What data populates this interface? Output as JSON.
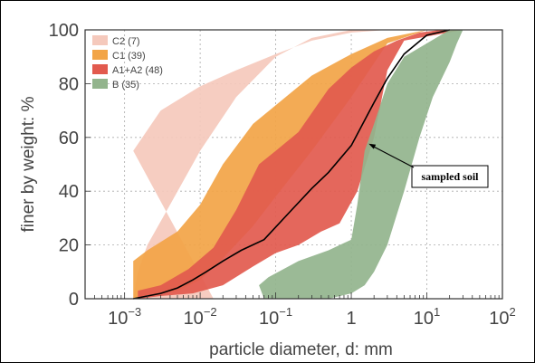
{
  "chart_data": {
    "type": "area",
    "xlabel": "particle diameter, d: mm",
    "ylabel": "finer by weight: %",
    "xscale": "log",
    "xlim": [
      0.0003,
      100
    ],
    "ylim": [
      0,
      100
    ],
    "grid": true,
    "legend_position": "top-left",
    "x_ticks": [
      {
        "base": "10",
        "exp": "−3"
      },
      {
        "base": "10",
        "exp": "−2"
      },
      {
        "base": "10",
        "exp": "−1"
      },
      {
        "base": "1",
        "exp": ""
      },
      {
        "base": "10",
        "exp": "1"
      },
      {
        "base": "10",
        "exp": "2"
      }
    ],
    "y_ticks": [
      "0",
      "20",
      "40",
      "60",
      "80",
      "100"
    ],
    "bands": [
      {
        "name": "C2 (7)",
        "color": "#f5c9bc",
        "left": [
          [
            0.0013,
            55
          ],
          [
            0.0013,
            0
          ],
          [
            0.015,
            0
          ]
        ],
        "right": [
          [
            0.0013,
            55
          ],
          [
            0.003,
            70
          ],
          [
            0.01,
            79
          ],
          [
            0.03,
            85
          ],
          [
            0.1,
            91
          ],
          [
            0.3,
            96
          ],
          [
            1,
            99
          ],
          [
            3,
            100
          ],
          [
            30,
            100
          ],
          [
            30,
            100
          ],
          [
            1,
            100
          ],
          [
            0.3,
            97
          ],
          [
            0.1,
            90
          ],
          [
            0.03,
            75
          ],
          [
            0.01,
            55
          ],
          [
            0.004,
            35
          ],
          [
            0.002,
            20
          ],
          [
            0.0015,
            10
          ],
          [
            0.0013,
            0
          ]
        ]
      },
      {
        "name": "C1 (39)",
        "color": "#f2a446",
        "outline": [
          [
            0.0013,
            14
          ],
          [
            0.002,
            18
          ],
          [
            0.005,
            25
          ],
          [
            0.01,
            35
          ],
          [
            0.02,
            50
          ],
          [
            0.05,
            65
          ],
          [
            0.1,
            72
          ],
          [
            0.3,
            83
          ],
          [
            1,
            91
          ],
          [
            3,
            97
          ],
          [
            10,
            100
          ],
          [
            30,
            100
          ],
          [
            10,
            100
          ],
          [
            3,
            95
          ],
          [
            1,
            75
          ],
          [
            0.3,
            55
          ],
          [
            0.1,
            38
          ],
          [
            0.05,
            27
          ],
          [
            0.02,
            15
          ],
          [
            0.01,
            7
          ],
          [
            0.005,
            3
          ],
          [
            0.002,
            1
          ],
          [
            0.0013,
            0
          ]
        ]
      },
      {
        "name": "A1+A2 (48)",
        "color": "#e25a4e",
        "outline": [
          [
            0.0015,
            3
          ],
          [
            0.003,
            5
          ],
          [
            0.007,
            11
          ],
          [
            0.015,
            19
          ],
          [
            0.03,
            33
          ],
          [
            0.06,
            50
          ],
          [
            0.1,
            55
          ],
          [
            0.2,
            62
          ],
          [
            0.5,
            78
          ],
          [
            1,
            86
          ],
          [
            2,
            92
          ],
          [
            4,
            96
          ],
          [
            8,
            99
          ],
          [
            15,
            100
          ],
          [
            30,
            100
          ],
          [
            5,
            96
          ],
          [
            3,
            85
          ],
          [
            2,
            60
          ],
          [
            1.2,
            40
          ],
          [
            0.7,
            28
          ],
          [
            0.4,
            25
          ],
          [
            0.2,
            20
          ],
          [
            0.1,
            17
          ],
          [
            0.05,
            12
          ],
          [
            0.02,
            5
          ],
          [
            0.008,
            2
          ],
          [
            0.003,
            1
          ],
          [
            0.0015,
            0
          ]
        ]
      },
      {
        "name": "B (35)",
        "color": "#93b48d",
        "outline": [
          [
            0.06,
            5
          ],
          [
            0.08,
            8
          ],
          [
            0.2,
            14
          ],
          [
            0.5,
            18
          ],
          [
            1,
            22
          ],
          [
            1.2,
            35
          ],
          [
            1.5,
            55
          ],
          [
            2,
            65
          ],
          [
            3,
            80
          ],
          [
            5,
            90
          ],
          [
            10,
            95
          ],
          [
            20,
            100
          ],
          [
            30,
            100
          ],
          [
            25,
            95
          ],
          [
            20,
            88
          ],
          [
            12,
            75
          ],
          [
            8,
            60
          ],
          [
            5,
            40
          ],
          [
            3,
            20
          ],
          [
            2,
            10
          ],
          [
            1.5,
            5
          ],
          [
            1,
            2
          ],
          [
            0.5,
            0
          ],
          [
            0.2,
            0
          ],
          [
            0.07,
            0
          ]
        ]
      }
    ],
    "series": [
      {
        "name": "sampled soil",
        "color": "#000000",
        "x": [
          0.0013,
          0.002,
          0.003,
          0.005,
          0.008,
          0.012,
          0.02,
          0.035,
          0.07,
          0.15,
          0.3,
          0.5,
          1,
          2,
          3,
          5,
          10,
          20
        ],
        "y": [
          0,
          1,
          2,
          4,
          7,
          10,
          14,
          18,
          22,
          32,
          41,
          47,
          57,
          73,
          82,
          91,
          98,
          100
        ]
      }
    ],
    "legend": [
      {
        "label": "C2 (7)",
        "color": "#f5c9bc"
      },
      {
        "label": "C1 (39)",
        "color": "#f2a446"
      },
      {
        "label": "A1+A2 (48)",
        "color": "#e25a4e"
      },
      {
        "label": "B (35)",
        "color": "#93b48d"
      }
    ],
    "annotation": {
      "label": "sampled soil",
      "target": [
        1.7,
        58
      ],
      "box": [
        9,
        46
      ]
    }
  }
}
